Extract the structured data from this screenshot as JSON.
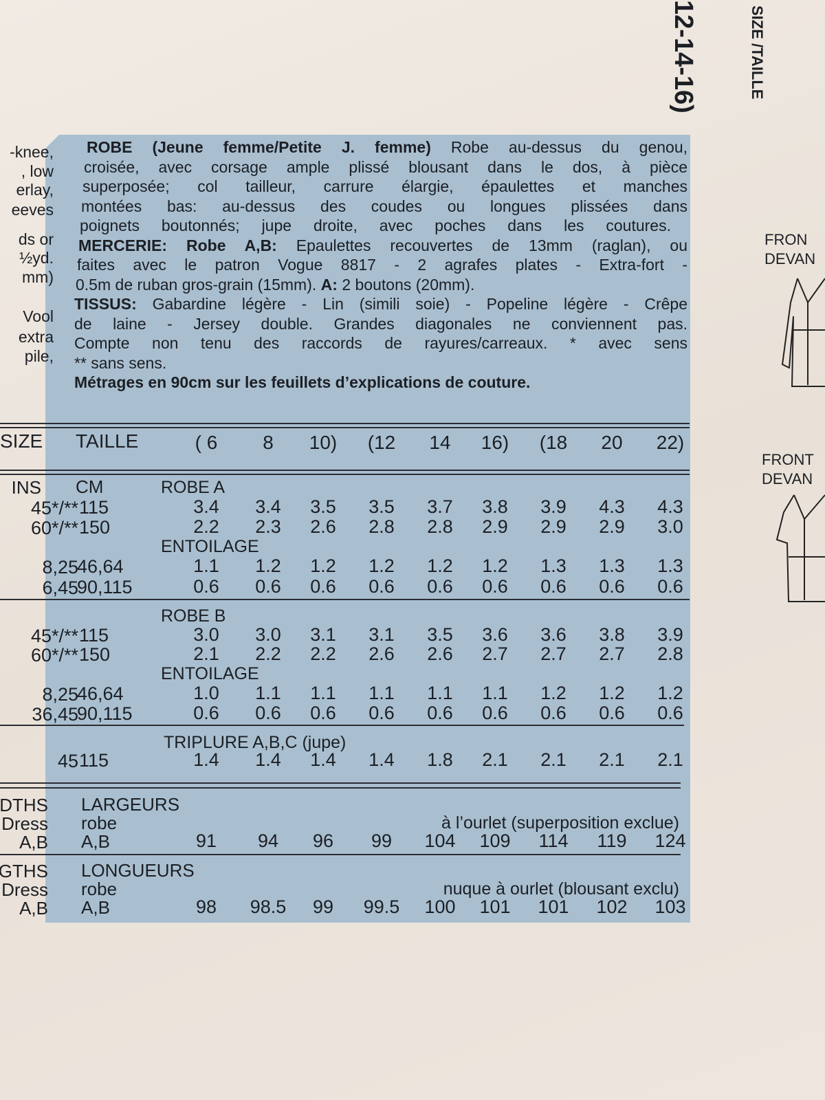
{
  "side_left_cut": [
    "-knee,",
    ", low",
    "erlay,",
    "eeves",
    "ds or",
    "½yd.",
    "mm)",
    "Vool",
    "extra",
    "pile,"
  ],
  "top_right": {
    "sizes_vertical": "12-14-16)",
    "size_label_vertical": "SIZE /TAILLE"
  },
  "right_illustrations": [
    {
      "label_en": "FRON",
      "label_fr": "DEVAN",
      "icon": "dress-a-sketch-icon"
    },
    {
      "label_en": "FRONT",
      "label_fr": "DEVAN",
      "icon": "dress-b-sketch-icon"
    }
  ],
  "description": {
    "title": "ROBE (Jeune femme/Petite J. femme)",
    "lines": [
      " Robe au-dessus du genou,",
      "croisée, avec corsage ample plissé blousant dans le dos, à pièce",
      "superposée; col tailleur, carrure élargie, épaulettes et manches",
      "montées bas: au-dessus des coudes ou longues plissées dans",
      "poignets boutonnés; jupe droite, avec poches dans les coutures."
    ],
    "mercerie_label": "MERCERIE: Robe A,B:",
    "mercerie_lines": [
      " Epaulettes recouvertes de 13mm (raglan), ou",
      "faites avec le patron Vogue 8817 - 2 agrafes plates - Extra-fort -"
    ],
    "mercerie_last_pre": "0.5m de ruban gros-grain (15mm). ",
    "mercerie_a_label": "A:",
    "mercerie_last_post": " 2 boutons (20mm).",
    "tissus_label": "TISSUS:",
    "tissus_lines": [
      " Gabardine légère - Lin (simili soie) - Popeline légère - Crêpe",
      "de laine - Jersey double. Grandes diagonales ne conviennent pas.",
      "Compte non tenu des raccords de rayures/carreaux. * avec sens",
      "** sans sens."
    ],
    "metrages_note": "Métrages en 90cm sur les feuillets d’explications de couture."
  },
  "table": {
    "size_label": "SIZE",
    "taille_label": "TAILLE",
    "sizes": [
      "( 6",
      "8",
      "10)",
      "(12",
      "14",
      "16)",
      "(18",
      "20",
      "22)"
    ],
    "ins_label": "INS",
    "cm_label": "CM",
    "sections": [
      {
        "label": "ROBE A",
        "rows": [
          {
            "ins": "45*/**",
            "cm": "115",
            "values": [
              "3.4",
              "3.4",
              "3.5",
              "3.5",
              "3.7",
              "3.8",
              "3.9",
              "4.3",
              "4.3"
            ]
          },
          {
            "ins": "60*/**",
            "cm": "150",
            "values": [
              "2.2",
              "2.3",
              "2.6",
              "2.8",
              "2.8",
              "2.9",
              "2.9",
              "2.9",
              "3.0"
            ]
          }
        ]
      },
      {
        "label": "ENTOILAGE",
        "rows": [
          {
            "ins": "8,25",
            "cm": "46,64",
            "values": [
              "1.1",
              "1.2",
              "1.2",
              "1.2",
              "1.2",
              "1.2",
              "1.3",
              "1.3",
              "1.3"
            ]
          },
          {
            "ins": "6,45",
            "cm": "90,115",
            "values": [
              "0.6",
              "0.6",
              "0.6",
              "0.6",
              "0.6",
              "0.6",
              "0.6",
              "0.6",
              "0.6"
            ]
          }
        ]
      },
      {
        "label": "ROBE B",
        "rows": [
          {
            "ins": "45*/**",
            "cm": "115",
            "values": [
              "3.0",
              "3.0",
              "3.1",
              "3.1",
              "3.5",
              "3.6",
              "3.6",
              "3.8",
              "3.9"
            ]
          },
          {
            "ins": "60*/**",
            "cm": "150",
            "values": [
              "2.1",
              "2.2",
              "2.2",
              "2.6",
              "2.6",
              "2.7",
              "2.7",
              "2.7",
              "2.8"
            ]
          }
        ]
      },
      {
        "label": "ENTOILAGE",
        "rows": [
          {
            "ins": "8,25",
            "cm": "46,64",
            "values": [
              "1.0",
              "1.1",
              "1.1",
              "1.1",
              "1.1",
              "1.1",
              "1.2",
              "1.2",
              "1.2"
            ]
          },
          {
            "ins": "36,45",
            "cm": "90,115",
            "values": [
              "0.6",
              "0.6",
              "0.6",
              "0.6",
              "0.6",
              "0.6",
              "0.6",
              "0.6",
              "0.6"
            ]
          }
        ]
      },
      {
        "label": "TRIPLURE A,B,C (jupe)",
        "rows": [
          {
            "ins": "45",
            "cm": "115",
            "values": [
              "1.4",
              "1.4",
              "1.4",
              "1.4",
              "1.8",
              "2.1",
              "2.1",
              "2.1",
              "2.1"
            ]
          }
        ]
      }
    ],
    "largeurs": {
      "left": [
        "DTHS",
        "Dress",
        "A,B"
      ],
      "label": "LARGEURS",
      "sub": "robe",
      "ab": "A,B",
      "note": "à l’ourlet (superposition exclue)",
      "values": [
        "91",
        "94",
        "96",
        "99",
        "104",
        "109",
        "114",
        "119",
        "124"
      ]
    },
    "longueurs": {
      "left": [
        "GTHS",
        "Dress",
        "A,B"
      ],
      "label": "LONGUEURS",
      "sub": "robe",
      "ab": "A,B",
      "note": "nuque à ourlet (blousant exclu)",
      "values": [
        "98",
        "98.5",
        "99",
        "99.5",
        "100",
        "101",
        "101",
        "102",
        "103"
      ]
    }
  },
  "colors": {
    "panel": "#a9bfd0",
    "paper": "#ece4dc",
    "ink": "#1c1f24"
  }
}
